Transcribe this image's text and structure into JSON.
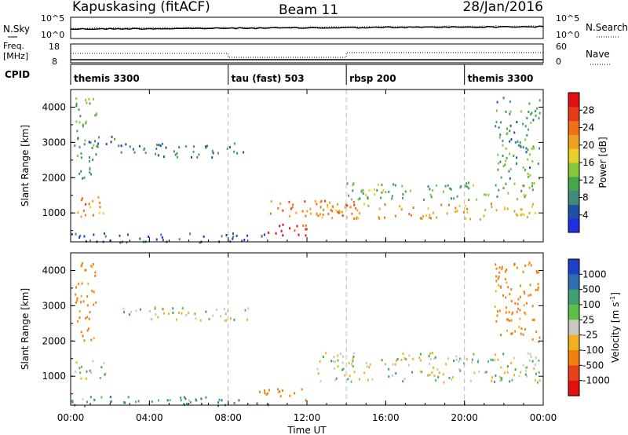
{
  "header": {
    "station": "Kapuskasing (fitACF)",
    "beam": "Beam 11",
    "date": "28/Jan/2016"
  },
  "top_panel": {
    "left_label": "N.Sky",
    "left_ticks": [
      "10^5",
      "10^0"
    ],
    "right_label": "N.Search",
    "right_ticks": [
      "10^5",
      "10^0"
    ]
  },
  "freq_panel": {
    "left_label_1": "Freq.",
    "left_label_2": "[MHz]",
    "left_ticks": [
      "18",
      "8"
    ],
    "right_label": "Nave",
    "right_ticks": [
      "60",
      "0"
    ]
  },
  "cpid": {
    "label": "CPID",
    "segments": [
      {
        "name": "themis 3300",
        "start_hour": 0
      },
      {
        "name": "tau (fast) 503",
        "start_hour": 8
      },
      {
        "name": "rbsp 200",
        "start_hour": 14
      },
      {
        "name": "themis 3300",
        "start_hour": 20
      }
    ]
  },
  "x_axis": {
    "label": "Time UT",
    "ticks": [
      "00:00",
      "04:00",
      "08:00",
      "12:00",
      "16:00",
      "20:00",
      "00:00"
    ],
    "range_hours": [
      0,
      24
    ]
  },
  "power_colorbar": {
    "label": "Power [dB]",
    "ticks": [
      "4",
      "8",
      "12",
      "16",
      "20",
      "24",
      "28"
    ],
    "colors": [
      "#1f2fe0",
      "#1f4fa8",
      "#3f8a7a",
      "#46a64c",
      "#86c83a",
      "#e8d028",
      "#f0a020",
      "#f07018",
      "#e83a18",
      "#e01010"
    ]
  },
  "velocity_colorbar": {
    "label_main": "Velocity",
    "label_unit": "[m s",
    "label_exp": "-1",
    "label_close": "]",
    "ticks": [
      "1000",
      "500",
      "100",
      "25",
      "-25",
      "-100",
      "-500",
      "-1000"
    ],
    "colors": [
      "#1f3fc8",
      "#2f6fb0",
      "#3fa070",
      "#5cc048",
      "#c8c8c0",
      "#f0b020",
      "#f08010",
      "#e84018",
      "#e01010"
    ]
  },
  "chart_data": [
    {
      "type": "heatmap",
      "title": "",
      "ylabel": "Slant Range [km]",
      "xlabel": "",
      "xlim": [
        0,
        24
      ],
      "ylim": [
        180,
        4500
      ],
      "yticks": [
        "1000",
        "2000",
        "3000",
        "4000"
      ],
      "ytick_values": [
        1000,
        2000,
        3000,
        4000
      ],
      "regions": [
        {
          "t": [
            0.2,
            1.8
          ],
          "r": [
            900,
            1500
          ],
          "p": 22
        },
        {
          "t": [
            0.2,
            1.3
          ],
          "r": [
            2000,
            4300
          ],
          "p": 12
        },
        {
          "t": [
            0.0,
            2.5
          ],
          "r": [
            2900,
            3200
          ],
          "p": 6
        },
        {
          "t": [
            2.5,
            9.0
          ],
          "r": [
            2600,
            3000
          ],
          "p": 8
        },
        {
          "t": [
            9.5,
            12.0
          ],
          "r": [
            350,
            700
          ],
          "p": 28
        },
        {
          "t": [
            10.0,
            14.5
          ],
          "r": [
            900,
            1400
          ],
          "p": 24
        },
        {
          "t": [
            12.5,
            23.8
          ],
          "r": [
            850,
            1300
          ],
          "p": 20
        },
        {
          "t": [
            14.0,
            23.8
          ],
          "r": [
            1400,
            1900
          ],
          "p": 12
        },
        {
          "t": [
            21.5,
            23.8
          ],
          "r": [
            2000,
            4300
          ],
          "p": 10
        },
        {
          "t": [
            0.0,
            10.0
          ],
          "r": [
            180,
            450
          ],
          "p": 5
        }
      ]
    },
    {
      "type": "heatmap",
      "title": "",
      "ylabel": "Slant Range [km]",
      "xlabel": "Time UT",
      "xlim": [
        0,
        24
      ],
      "ylim": [
        180,
        4500
      ],
      "yticks": [
        "1000",
        "2000",
        "3000",
        "4000"
      ],
      "ytick_values": [
        1000,
        2000,
        3000,
        4000
      ],
      "regions": [
        {
          "t": [
            0.2,
            1.8
          ],
          "r": [
            900,
            1500
          ],
          "v": 0
        },
        {
          "t": [
            0.2,
            1.3
          ],
          "r": [
            2000,
            4300
          ],
          "v": -150
        },
        {
          "t": [
            2.5,
            9.0
          ],
          "r": [
            2600,
            3000
          ],
          "v": 0
        },
        {
          "t": [
            9.5,
            12.0
          ],
          "r": [
            350,
            700
          ],
          "v": -150
        },
        {
          "t": [
            12.5,
            23.8
          ],
          "r": [
            850,
            1700
          ],
          "v": 0
        },
        {
          "t": [
            21.5,
            23.8
          ],
          "r": [
            2000,
            4300
          ],
          "v": -150
        },
        {
          "t": [
            0.0,
            10.0
          ],
          "r": [
            180,
            450
          ],
          "v": 80
        }
      ]
    }
  ]
}
